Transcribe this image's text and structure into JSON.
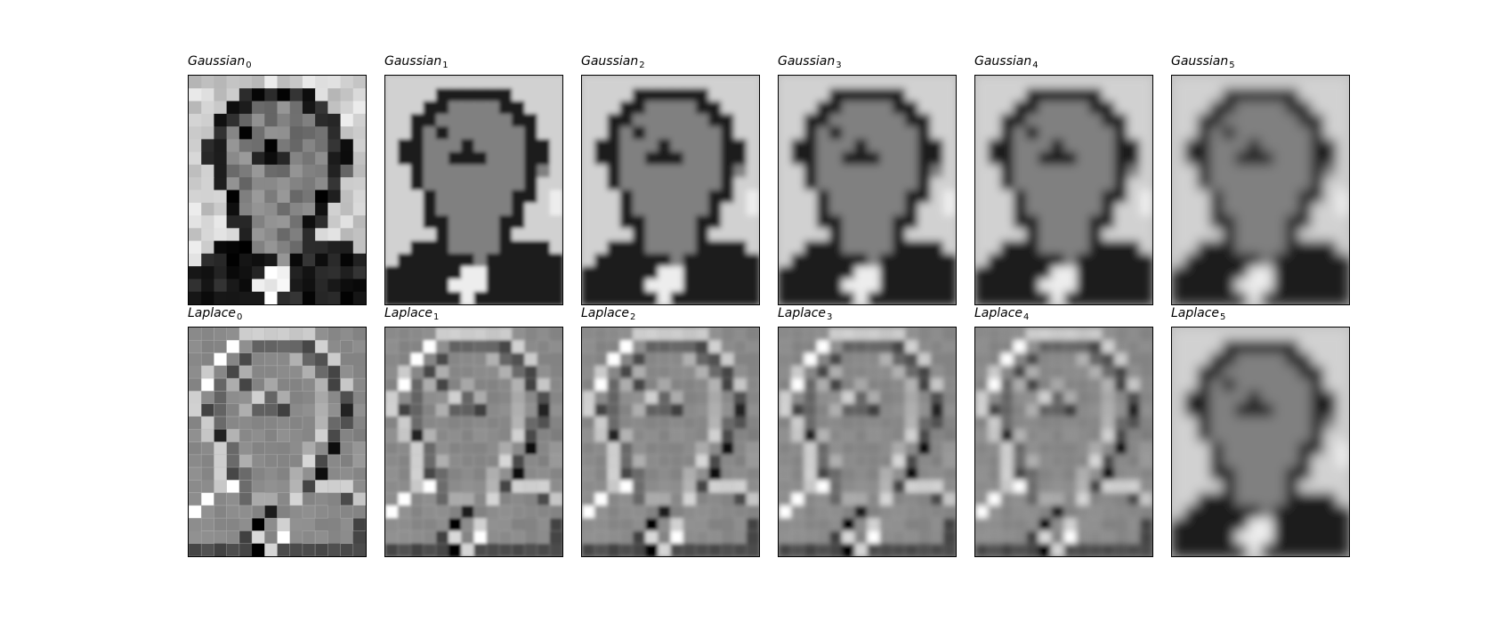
{
  "figure": {
    "rows": [
      {
        "row_name": "gaussian",
        "panels": [
          {
            "label": "Gaussian",
            "subscript": "0",
            "style": "sharp"
          },
          {
            "label": "Gaussian",
            "subscript": "1",
            "style": "blur1"
          },
          {
            "label": "Gaussian",
            "subscript": "2",
            "style": "blur2"
          },
          {
            "label": "Gaussian",
            "subscript": "3",
            "style": "blur3"
          },
          {
            "label": "Gaussian",
            "subscript": "4",
            "style": "blur4"
          },
          {
            "label": "Gaussian",
            "subscript": "5",
            "style": "blur5"
          }
        ]
      },
      {
        "row_name": "laplace",
        "panels": [
          {
            "label": "Laplace",
            "subscript": "0",
            "style": "edge0"
          },
          {
            "label": "Laplace",
            "subscript": "1",
            "style": "edge1"
          },
          {
            "label": "Laplace",
            "subscript": "2",
            "style": "edge2"
          },
          {
            "label": "Laplace",
            "subscript": "3",
            "style": "edge3"
          },
          {
            "label": "Laplace",
            "subscript": "4",
            "style": "edge4"
          },
          {
            "label": "Laplace",
            "subscript": "5",
            "style": "blur5"
          }
        ]
      }
    ]
  }
}
